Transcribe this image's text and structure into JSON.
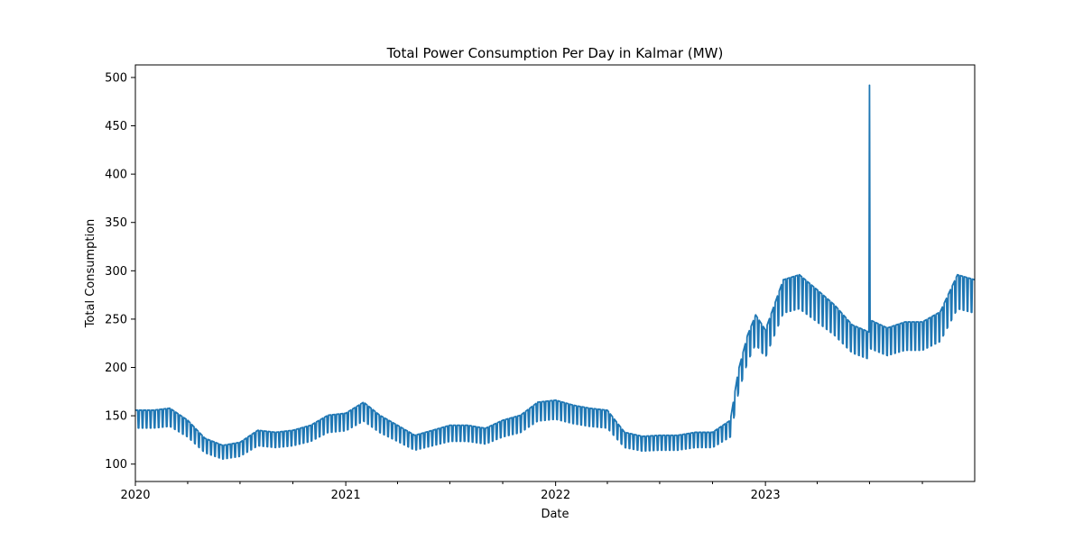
{
  "chart_data": {
    "type": "line",
    "title": "Total Power Consumption Per Day in Kalmar (MW)",
    "xlabel": "Date",
    "ylabel": "Total Consumption",
    "x_range": [
      "2020-01-01",
      "2023-12-31"
    ],
    "ylim": [
      82,
      513
    ],
    "x_ticks": [
      {
        "date": "2020-01-01",
        "label": "2020"
      },
      {
        "date": "2021-01-01",
        "label": "2021"
      },
      {
        "date": "2022-01-01",
        "label": "2022"
      },
      {
        "date": "2023-01-01",
        "label": "2023"
      }
    ],
    "x_minor_tick_dates": [
      "2020-04-01",
      "2020-07-01",
      "2020-10-01",
      "2021-04-01",
      "2021-07-01",
      "2021-10-01",
      "2022-04-01",
      "2022-07-01",
      "2022-10-01",
      "2023-04-01",
      "2023-07-01",
      "2023-10-01"
    ],
    "y_ticks": [
      100,
      150,
      200,
      250,
      300,
      350,
      400,
      450,
      500
    ],
    "grid": false,
    "legend": "none",
    "series": [
      {
        "color": "#1f77b4",
        "x": [
          "2020-01-01",
          "2020-02-01",
          "2020-03-01",
          "2020-04-01",
          "2020-05-01",
          "2020-06-01",
          "2020-07-01",
          "2020-08-01",
          "2020-09-01",
          "2020-10-01",
          "2020-11-01",
          "2020-12-01",
          "2021-01-01",
          "2021-02-01",
          "2021-03-01",
          "2021-04-01",
          "2021-05-01",
          "2021-06-01",
          "2021-07-01",
          "2021-08-01",
          "2021-09-01",
          "2021-10-01",
          "2021-11-01",
          "2021-12-01",
          "2022-01-01",
          "2022-02-01",
          "2022-03-01",
          "2022-04-01",
          "2022-05-01",
          "2022-06-01",
          "2022-07-01",
          "2022-08-01",
          "2022-09-01",
          "2022-10-01",
          "2022-11-01",
          "2022-11-15",
          "2022-12-01",
          "2022-12-15",
          "2023-01-01",
          "2023-02-01",
          "2023-03-01",
          "2023-04-01",
          "2023-05-01",
          "2023-06-01",
          "2023-06-30",
          "2023-07-01",
          "2023-07-02",
          "2023-08-01",
          "2023-09-01",
          "2023-10-01",
          "2023-11-01",
          "2023-12-01",
          "2023-12-31"
        ],
        "y": [
          150,
          150,
          152,
          140,
          122,
          115,
          118,
          130,
          128,
          130,
          135,
          145,
          147,
          158,
          145,
          135,
          125,
          130,
          135,
          135,
          132,
          140,
          145,
          158,
          160,
          155,
          152,
          150,
          128,
          124,
          125,
          125,
          128,
          128,
          140,
          190,
          225,
          245,
          230,
          280,
          285,
          270,
          255,
          235,
          228,
          492,
          240,
          232,
          238,
          238,
          248,
          285,
          280
        ]
      }
    ]
  }
}
